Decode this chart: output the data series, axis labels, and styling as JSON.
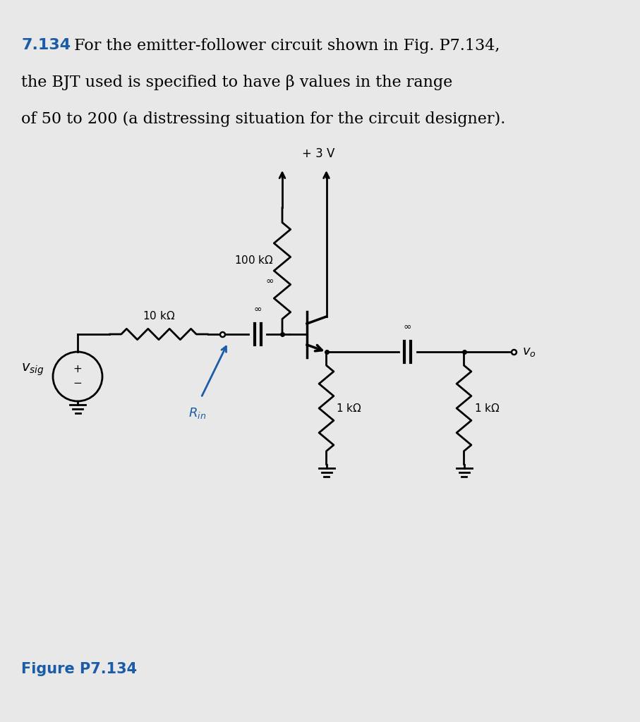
{
  "bg_color": "#e8e8e8",
  "text_color": "#000000",
  "blue_color": "#1a5ca8",
  "title_number": "7.134",
  "title_text": " For the emitter-follower circuit shown in Fig. P7.134,",
  "line2": "the BJT used is specified to have β values in the range",
  "line3": "of 50 to 200 (a distressing situation for the circuit designer).",
  "figure_label": "Figure P7.134",
  "vcc_label": "+ 3 V",
  "inf_symbol": "∞"
}
